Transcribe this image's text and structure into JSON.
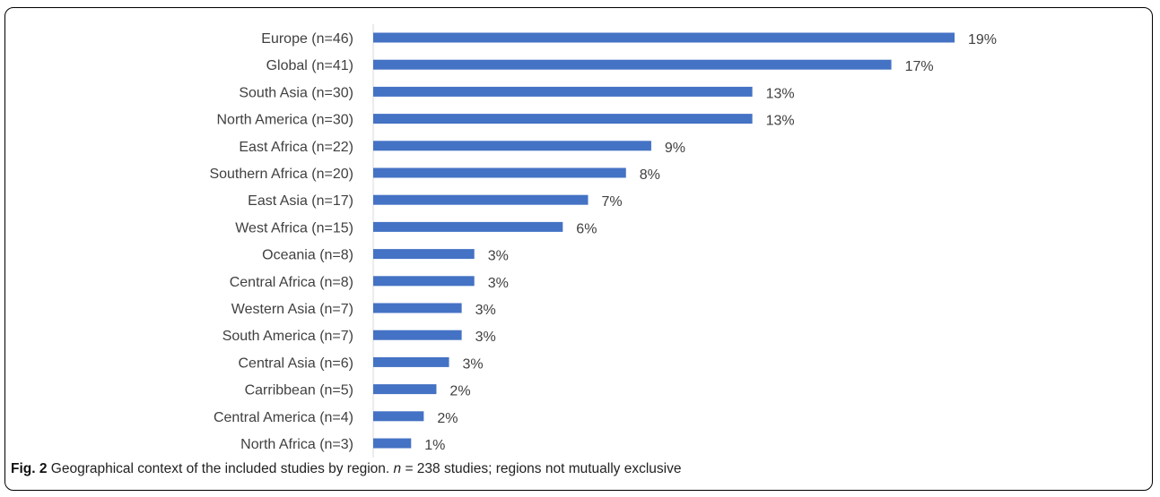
{
  "chart_data": {
    "type": "bar",
    "orientation": "horizontal",
    "categories": [
      "Europe (n=46)",
      "Global (n=41)",
      "South Asia (n=30)",
      "North America (n=30)",
      "East Africa (n=22)",
      "Southern Africa (n=20)",
      "East Asia (n=17)",
      "West Africa (n=15)",
      "Oceania (n=8)",
      "Central Africa (n=8)",
      "Western Asia (n=7)",
      "South America (n=7)",
      "Central Asia (n=6)",
      "Carribbean (n=5)",
      "Central America (n=4)",
      "North Africa (n=3)"
    ],
    "values": [
      46,
      41,
      30,
      30,
      22,
      20,
      17,
      15,
      8,
      8,
      7,
      7,
      6,
      5,
      4,
      3
    ],
    "data_labels": [
      "19%",
      "17%",
      "13%",
      "13%",
      "9%",
      "8%",
      "7%",
      "6%",
      "3%",
      "3%",
      "3%",
      "3%",
      "3%",
      "2%",
      "2%",
      "1%"
    ],
    "bar_color": "#4472c4",
    "axis_color": "#d9d9d9",
    "xlim": [
      0,
      46
    ],
    "grid": false,
    "legend": "none"
  },
  "caption": {
    "label": "Fig. 2",
    "text_before": " Geographical context of the included studies by region. ",
    "n_symbol": "n",
    "text_after": " = 238 studies; regions not mutually exclusive"
  }
}
